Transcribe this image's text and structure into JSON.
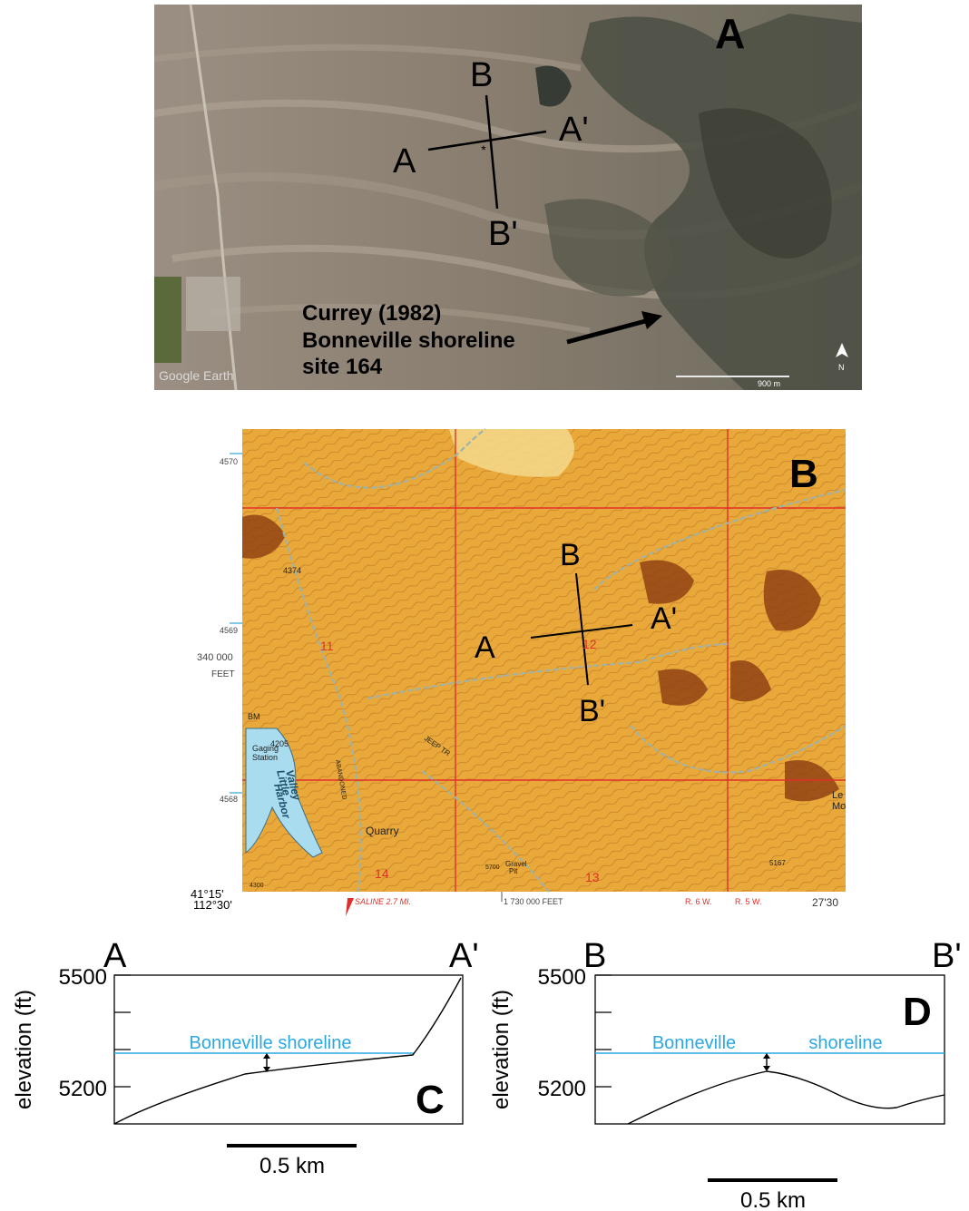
{
  "panel_a": {
    "letter": "A",
    "section_labels": {
      "a": "A",
      "a_prime": "A'",
      "b": "B",
      "b_prime": "B'"
    },
    "annotation": [
      "Currey (1982)",
      "Bonneville shoreline",
      "site 164"
    ],
    "watermark": "Google Earth",
    "scale_label": "900 m"
  },
  "panel_b": {
    "letter": "B",
    "section_labels": {
      "a": "A",
      "a_prime": "A'",
      "b": "B",
      "b_prime": "B'"
    },
    "left_ticks": [
      "4570",
      "4569",
      "340 000",
      "FEET",
      "4568"
    ],
    "bottom_left": [
      "41°15'",
      "112°30'"
    ],
    "bottom_labels": {
      "saline": "SALINE 2.7 MI.",
      "feet": "1 730 000 FEET",
      "range_w6": "R. 6 W.",
      "range_w5": "R. 5 W.",
      "minutes": "27'30"
    },
    "section_numbers": [
      "11",
      "12",
      "14",
      "13"
    ],
    "place_labels": {
      "harbor_1": "Little",
      "harbor_2": "Valley",
      "harbor_3": "Harbor",
      "gaging_1": "Gaging",
      "gaging_2": "Station",
      "bm": "BM",
      "elev_4205": "4205",
      "elev_4374": "4374",
      "abandoned": "ABANDONED",
      "jeep": "JEEP TR",
      "quarry": "Quarry",
      "gravel_1": "Gravel",
      "gravel_2": "Pit",
      "elev_5167": "5167",
      "elev_5700": "5700",
      "elev_4300": "4300",
      "le": "Le",
      "mo": "Mo"
    }
  },
  "profile_c": {
    "letter": "C",
    "start_label": "A",
    "end_label": "A'",
    "ylabel": "elevation (ft)",
    "tick_top": "5500",
    "tick_bottom": "5200",
    "shoreline_label": "Bonneville shoreline",
    "scale_label": "0.5 km"
  },
  "profile_d": {
    "letter": "D",
    "start_label": "B",
    "end_label": "B'",
    "ylabel": "elevation (ft)",
    "tick_top": "5500",
    "tick_bottom": "5200",
    "shoreline_label_1": "Bonneville",
    "shoreline_label_2": "shoreline",
    "scale_label": "0.5 km"
  },
  "colors": {
    "shoreline": "#2ba8e0",
    "grid_red": "#e0302a",
    "map_base": "#e8a83a",
    "harbor_water": "#a9dcee"
  }
}
